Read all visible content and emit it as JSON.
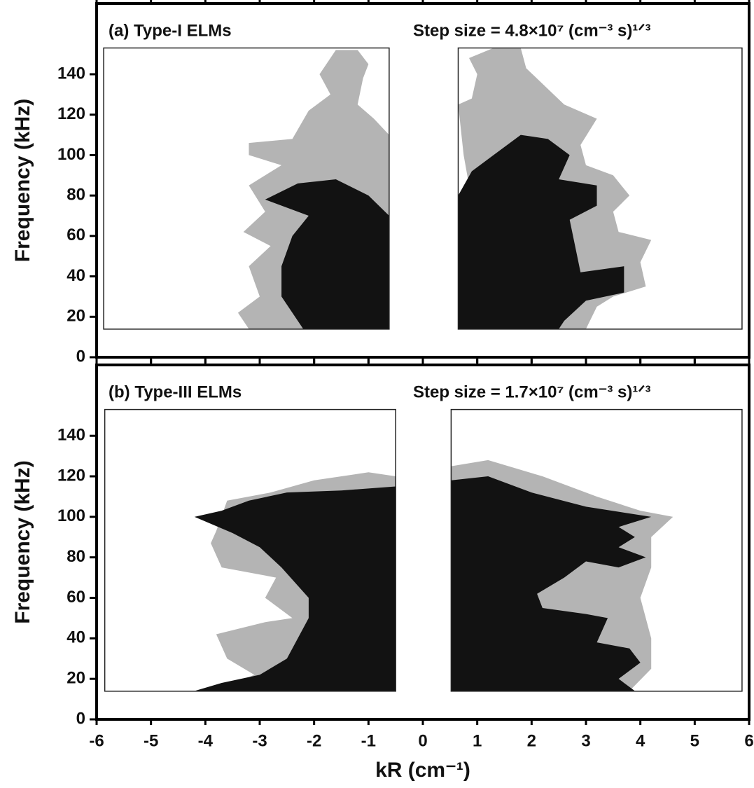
{
  "chart_data": [
    {
      "type": "contour",
      "title": "(a) Type-I ELMs",
      "annotation": "Step size = 4.8×10⁷ (cm⁻³ s)¹ᐟ³",
      "ylabel": "Frequency (kHz)",
      "xlim": [
        -6,
        6
      ],
      "ylim": [
        0,
        175
      ],
      "xticks": [
        -6,
        -5,
        -4,
        -3,
        -2,
        -1,
        0,
        1,
        2,
        3,
        4,
        5,
        6
      ],
      "yticks": [
        0,
        20,
        40,
        60,
        80,
        100,
        120,
        140
      ],
      "frames": [
        {
          "x": [
            -5.87,
            -0.62
          ],
          "y": [
            13.9,
            153
          ]
        },
        {
          "x": [
            0.65,
            5.87
          ],
          "y": [
            13.9,
            153
          ]
        }
      ],
      "regions": [
        {
          "color": "#b4b4b4",
          "x": [
            -3.2,
            -3.4,
            -3.0,
            -3.2,
            -2.8,
            -3.3,
            -2.9,
            -3.2,
            -2.6,
            -3.2,
            -3.2,
            -2.4,
            -2.1,
            -1.7,
            -1.9,
            -1.6,
            -1.2,
            -1.0,
            -1.1,
            -1.2,
            -0.9,
            -0.62,
            -0.62
          ],
          "y": [
            14,
            22,
            30,
            45,
            55,
            62,
            72,
            85,
            95,
            100,
            106,
            108,
            122,
            130,
            140,
            152,
            152,
            145,
            138,
            125,
            118,
            110,
            14
          ]
        },
        {
          "color": "#121212",
          "x": [
            -2.2,
            -2.6,
            -2.6,
            -2.4,
            -2.1,
            -2.9,
            -2.3,
            -1.6,
            -1.0,
            -0.62,
            -0.62
          ],
          "y": [
            14,
            30,
            45,
            60,
            70,
            78,
            86,
            88,
            80,
            70,
            14
          ]
        },
        {
          "color": "#b4b4b4",
          "x": [
            0.65,
            0.65,
            0.85,
            0.75,
            0.65,
            0.9,
            1.0,
            0.85,
            1.3,
            1.8,
            1.9,
            2.6,
            3.2,
            2.9,
            3.0,
            3.5,
            3.8,
            3.5,
            3.6,
            4.2,
            4.0,
            4.1,
            3.5,
            3.2,
            3.0
          ],
          "y": [
            14,
            65,
            85,
            100,
            125,
            128,
            140,
            148,
            153,
            153,
            143,
            125,
            118,
            105,
            95,
            90,
            80,
            72,
            62,
            58,
            47,
            35,
            30,
            25,
            14
          ]
        },
        {
          "color": "#121212",
          "x": [
            0.65,
            0.65,
            0.9,
            1.3,
            1.8,
            2.3,
            2.7,
            2.5,
            3.2,
            3.2,
            2.7,
            2.8,
            2.9,
            3.7,
            3.7,
            3.0,
            2.6,
            2.5
          ],
          "y": [
            14,
            80,
            92,
            100,
            110,
            108,
            100,
            88,
            85,
            75,
            68,
            55,
            42,
            45,
            32,
            28,
            18,
            14
          ]
        }
      ]
    },
    {
      "type": "contour",
      "title": "(b) Type-III ELMs",
      "annotation": "Step size = 1.7×10⁷ (cm⁻³ s)¹ᐟ³",
      "ylabel": "Frequency (kHz)",
      "xlabel": "kR (cm⁻¹)",
      "xlim": [
        -6,
        6
      ],
      "ylim": [
        0,
        175
      ],
      "xticks": [
        -6,
        -5,
        -4,
        -3,
        -2,
        -1,
        0,
        1,
        2,
        3,
        4,
        5,
        6
      ],
      "yticks": [
        0,
        20,
        40,
        60,
        80,
        100,
        120,
        140
      ],
      "frames": [
        {
          "x": [
            -5.85,
            -0.5
          ],
          "y": [
            13.9,
            153
          ]
        },
        {
          "x": [
            0.52,
            5.87
          ],
          "y": [
            13.9,
            153
          ]
        }
      ],
      "regions": [
        {
          "color": "#b4b4b4",
          "x": [
            -3.8,
            -3.1,
            -3.6,
            -3.8,
            -2.9,
            -2.4,
            -2.9,
            -2.7,
            -3.7,
            -3.9,
            -3.8,
            -3.6,
            -2.8,
            -2.0,
            -1.0,
            -0.5,
            -0.5
          ],
          "y": [
            14,
            22,
            30,
            42,
            48,
            50,
            60,
            70,
            75,
            87,
            93,
            108,
            112,
            118,
            122,
            120,
            14
          ]
        },
        {
          "color": "#121212",
          "x": [
            -4.2,
            -3.7,
            -3.0,
            -2.5,
            -2.1,
            -2.1,
            -2.6,
            -3.0,
            -3.5,
            -4.2,
            -3.7,
            -3.2,
            -2.5,
            -1.5,
            -0.5,
            -0.5
          ],
          "y": [
            14,
            18,
            22,
            30,
            50,
            60,
            75,
            85,
            92,
            100,
            103,
            108,
            112,
            113,
            115,
            14
          ]
        },
        {
          "color": "#b4b4b4",
          "x": [
            0.52,
            0.52,
            1.2,
            2.2,
            3.2,
            4.0,
            4.6,
            4.2,
            4.2,
            4.0,
            4.2,
            4.2,
            3.8
          ],
          "y": [
            14,
            125,
            128,
            120,
            110,
            103,
            100,
            90,
            75,
            60,
            40,
            25,
            14
          ]
        },
        {
          "color": "#121212",
          "x": [
            0.52,
            0.52,
            1.2,
            2.0,
            3.0,
            4.2,
            3.6,
            3.9,
            3.6,
            4.1,
            3.6,
            3.0,
            2.6,
            2.1,
            2.2,
            3.0,
            3.4,
            3.2,
            3.8,
            4.0,
            3.6,
            3.9
          ],
          "y": [
            14,
            118,
            120,
            112,
            105,
            100,
            95,
            90,
            85,
            80,
            75,
            78,
            70,
            62,
            55,
            52,
            50,
            38,
            35,
            28,
            20,
            14
          ]
        }
      ]
    }
  ]
}
